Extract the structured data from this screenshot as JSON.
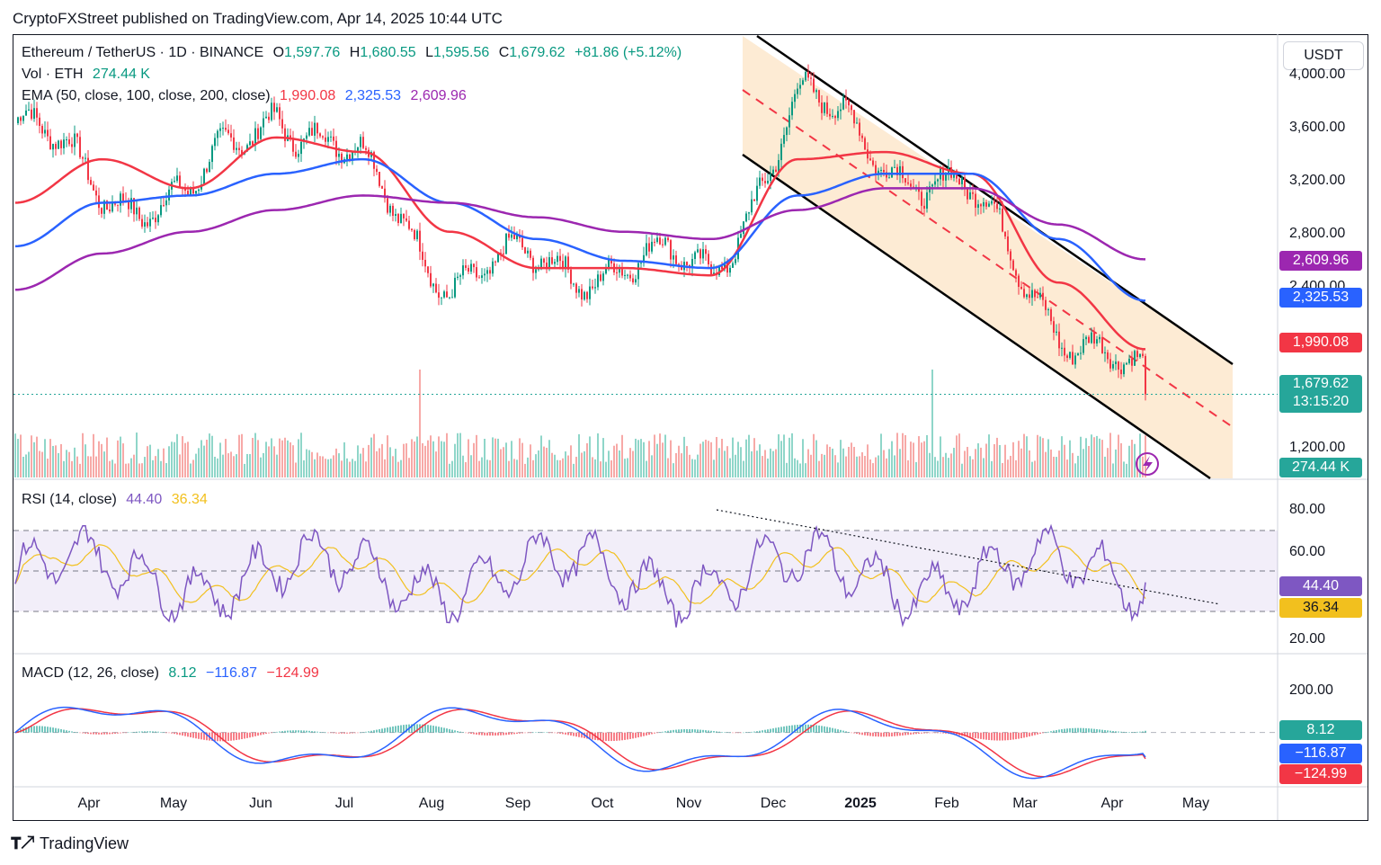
{
  "header": {
    "publisher": "CryptoFXStreet published on TradingView.com, Apr 14, 2025 10:44 UTC"
  },
  "legend": {
    "symbol": "Ethereum / TetherUS · 1D · BINANCE",
    "o_label": "O",
    "o": "1,597.76",
    "h_label": "H",
    "h": "1,680.55",
    "l_label": "L",
    "l": "1,595.56",
    "c_label": "C",
    "c": "1,679.62",
    "change": "+81.86 (+5.12%)",
    "vol_label": "Vol · ETH",
    "vol": "274.44 K",
    "ema_label": "EMA (50, close, 100, close, 200, close)",
    "ema50": "1,990.08",
    "ema100": "2,325.53",
    "ema200": "2,609.96",
    "rsi_label": "RSI (14, close)",
    "rsi": "44.40",
    "rsi_ma": "36.34",
    "macd_label": "MACD (12, 26, close)",
    "macd_hist": "8.12",
    "macd": "−116.87",
    "macd_signal": "−124.99"
  },
  "currency_button": "USDT",
  "price_axis": {
    "ticks": [
      "4,000.00",
      "3,600.00",
      "3,200.00",
      "2,800.00",
      "2,400.00",
      "1,200.00"
    ]
  },
  "price_badges": {
    "ema200": "2,609.96",
    "ema100": "2,325.53",
    "ema50": "1,990.08",
    "price": "1,679.62",
    "countdown": "13:15:20",
    "volume": "274.44 K"
  },
  "rsi_axis": {
    "ticks": [
      "80.00",
      "60.00",
      "20.00"
    ],
    "badges": [
      "44.40",
      "36.34"
    ]
  },
  "macd_axis": {
    "ticks": [
      "200.00"
    ],
    "badges": [
      "8.12",
      "−116.87",
      "−124.99"
    ]
  },
  "time_axis": {
    "labels": [
      "Apr",
      "May",
      "Jun",
      "Jul",
      "Aug",
      "Sep",
      "Oct",
      "Nov",
      "Dec",
      "2025",
      "Feb",
      "Mar",
      "Apr",
      "May"
    ]
  },
  "footer": {
    "brand": "TradingView"
  },
  "colors": {
    "up": "#089981",
    "down": "#f23645",
    "ema50": "#f23645",
    "ema100": "#2962ff",
    "ema200": "#9c27b0",
    "rsi": "#7e57c2",
    "rsi_ma": "#f2c01e",
    "channel_fill": "#fde8cc"
  },
  "chart_data": {
    "type": "line",
    "title": "Ethereum / TetherUS · 1D · BINANCE",
    "x": [
      "2024-03",
      "2024-04",
      "2024-05",
      "2024-06",
      "2024-07",
      "2024-08",
      "2024-09",
      "2024-10",
      "2024-11",
      "2024-12",
      "2025-01",
      "2025-02",
      "2025-03",
      "2025-04"
    ],
    "series": [
      {
        "name": "Close (approx.)",
        "values": [
          3550,
          3100,
          3000,
          3700,
          3200,
          2500,
          2550,
          2600,
          2500,
          3700,
          3350,
          3000,
          2200,
          1680
        ]
      },
      {
        "name": "EMA 50",
        "values": [
          3000,
          3300,
          3100,
          3450,
          3350,
          2800,
          2550,
          2550,
          2500,
          3300,
          3350,
          3200,
          2450,
          1990
        ]
      },
      {
        "name": "EMA 100",
        "values": [
          2700,
          3000,
          3050,
          3200,
          3300,
          3000,
          2750,
          2600,
          2550,
          3050,
          3200,
          3200,
          2750,
          2325
        ]
      },
      {
        "name": "EMA 200",
        "values": [
          2400,
          2650,
          2800,
          2950,
          3050,
          3000,
          2900,
          2800,
          2750,
          2950,
          3100,
          3100,
          2850,
          2610
        ]
      }
    ],
    "ylim": [
      1100,
      4150
    ],
    "rsi": {
      "last": 44.4,
      "ma": 36.34,
      "levels": [
        70,
        50,
        30
      ]
    },
    "macd": {
      "macd": -116.87,
      "signal": -124.99,
      "histogram": 8.12
    },
    "last_close": 1679.62
  }
}
